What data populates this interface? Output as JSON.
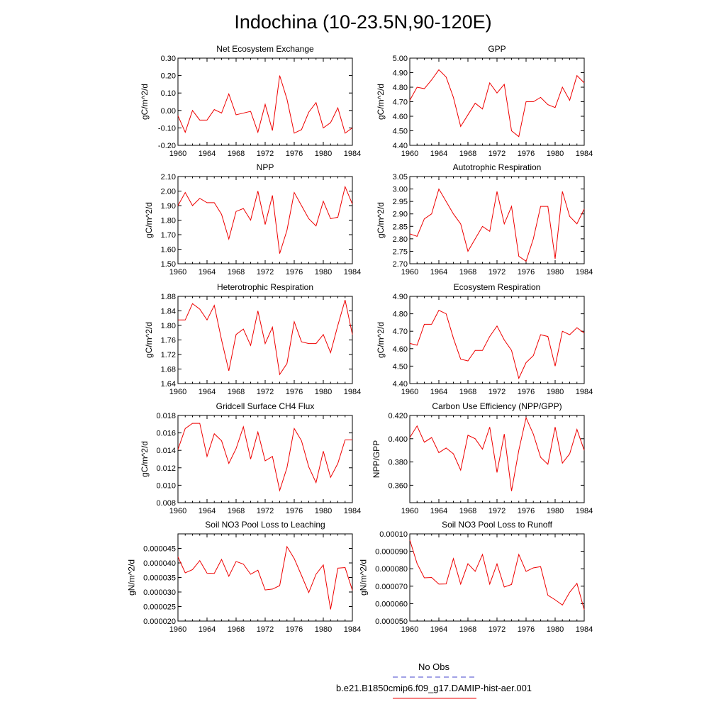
{
  "title": "Indochina (10-23.5N,90-120E)",
  "legend": {
    "items": [
      {
        "label": "No Obs",
        "color": "#4444cc",
        "style": "dashed"
      },
      {
        "label": "b.e21.B1850cmip6.f09_g17.DAMIP-hist-aer.001",
        "color": "#ee0000",
        "style": "solid"
      }
    ]
  },
  "chart_data": [
    {
      "type": "line",
      "title": "Net Ecosystem Exchange",
      "ylabel": "gC/m^2/d",
      "xlim": [
        1960,
        1984
      ],
      "ylim": [
        -0.2,
        0.3
      ],
      "xticks": [
        "1960",
        "1964",
        "1968",
        "1972",
        "1976",
        "1980",
        "1984"
      ],
      "yticks": [
        "-0.20",
        "-0.10",
        "0.00",
        "0.10",
        "0.20",
        "0.30"
      ],
      "grid": false,
      "series": [
        {
          "color": "#ee0000",
          "x": [
            1960,
            1961,
            1962,
            1963,
            1964,
            1965,
            1966,
            1967,
            1968,
            1970,
            1971,
            1972,
            1973,
            1974,
            1975,
            1976,
            1977,
            1978,
            1979,
            1980,
            1981,
            1982,
            1983,
            1984
          ],
          "values": [
            -0.03,
            -0.125,
            0.0,
            -0.055,
            -0.055,
            0.005,
            -0.015,
            0.095,
            -0.025,
            -0.005,
            -0.125,
            0.035,
            -0.115,
            0.2,
            0.065,
            -0.13,
            -0.11,
            -0.01,
            0.045,
            -0.1,
            -0.07,
            0.015,
            -0.13,
            -0.1
          ]
        }
      ]
    },
    {
      "type": "line",
      "title": "GPP",
      "ylabel": "gC/m^2/d",
      "xlim": [
        1960,
        1984
      ],
      "ylim": [
        4.4,
        5.0
      ],
      "xticks": [
        "1960",
        "1964",
        "1968",
        "1972",
        "1976",
        "1980",
        "1984"
      ],
      "yticks": [
        "4.40",
        "4.50",
        "4.60",
        "4.70",
        "4.80",
        "4.90",
        "5.00"
      ],
      "grid": false,
      "series": [
        {
          "color": "#ee0000",
          "x": [
            1960,
            1961,
            1962,
            1963,
            1964,
            1965,
            1966,
            1967,
            1968,
            1969,
            1970,
            1971,
            1972,
            1973,
            1974,
            1975,
            1976,
            1977,
            1978,
            1979,
            1980,
            1981,
            1982,
            1983,
            1984
          ],
          "values": [
            4.71,
            4.8,
            4.79,
            4.85,
            4.92,
            4.87,
            4.73,
            4.53,
            4.61,
            4.69,
            4.65,
            4.83,
            4.76,
            4.82,
            4.5,
            4.46,
            4.7,
            4.7,
            4.73,
            4.68,
            4.66,
            4.8,
            4.71,
            4.88,
            4.83
          ]
        }
      ]
    },
    {
      "type": "line",
      "title": "NPP",
      "ylabel": "gC/m^2/d",
      "xlim": [
        1960,
        1984
      ],
      "ylim": [
        1.5,
        2.1
      ],
      "xticks": [
        "1960",
        "1964",
        "1968",
        "1972",
        "1976",
        "1980",
        "1984"
      ],
      "yticks": [
        "1.50",
        "1.60",
        "1.70",
        "1.80",
        "1.90",
        "2.00",
        "2.10"
      ],
      "grid": false,
      "series": [
        {
          "color": "#ee0000",
          "x": [
            1960,
            1961,
            1962,
            1963,
            1964,
            1965,
            1966,
            1967,
            1968,
            1969,
            1970,
            1971,
            1972,
            1973,
            1974,
            1975,
            1976,
            1977,
            1978,
            1979,
            1980,
            1981,
            1982,
            1983,
            1984
          ],
          "values": [
            1.9,
            1.99,
            1.9,
            1.95,
            1.92,
            1.92,
            1.84,
            1.67,
            1.86,
            1.88,
            1.8,
            2.0,
            1.77,
            1.97,
            1.57,
            1.73,
            1.99,
            1.9,
            1.81,
            1.76,
            1.93,
            1.81,
            1.82,
            2.03,
            1.91
          ]
        }
      ]
    },
    {
      "type": "line",
      "title": "Autotrophic Respiration",
      "ylabel": "gC/m^2/d",
      "xlim": [
        1960,
        1984
      ],
      "ylim": [
        2.7,
        3.05
      ],
      "xticks": [
        "1960",
        "1964",
        "1968",
        "1972",
        "1976",
        "1980",
        "1984"
      ],
      "yticks": [
        "2.70",
        "2.75",
        "2.80",
        "2.85",
        "2.90",
        "2.95",
        "3.00",
        "3.05"
      ],
      "grid": false,
      "series": [
        {
          "color": "#ee0000",
          "x": [
            1960,
            1961,
            1962,
            1963,
            1964,
            1965,
            1966,
            1967,
            1968,
            1969,
            1970,
            1971,
            1972,
            1973,
            1974,
            1975,
            1976,
            1977,
            1978,
            1979,
            1980,
            1981,
            1982,
            1983,
            1984
          ],
          "values": [
            2.82,
            2.81,
            2.88,
            2.9,
            3.0,
            2.95,
            2.9,
            2.86,
            2.75,
            2.8,
            2.85,
            2.83,
            2.99,
            2.86,
            2.93,
            2.73,
            2.71,
            2.8,
            2.93,
            2.93,
            2.72,
            2.99,
            2.89,
            2.86,
            2.92
          ]
        }
      ]
    },
    {
      "type": "line",
      "title": "Heterotrophic Respiration",
      "ylabel": "gC/m^2/d",
      "xlim": [
        1960,
        1984
      ],
      "ylim": [
        1.64,
        1.88
      ],
      "xticks": [
        "1960",
        "1964",
        "1968",
        "1972",
        "1976",
        "1980",
        "1984"
      ],
      "yticks": [
        "1.64",
        "1.68",
        "1.72",
        "1.76",
        "1.80",
        "1.84",
        "1.88"
      ],
      "grid": false,
      "series": [
        {
          "color": "#ee0000",
          "x": [
            1960,
            1961,
            1962,
            1963,
            1964,
            1965,
            1966,
            1967,
            1968,
            1969,
            1970,
            1971,
            1972,
            1973,
            1974,
            1975,
            1976,
            1977,
            1978,
            1979,
            1980,
            1981,
            1982,
            1983,
            1984
          ],
          "values": [
            1.815,
            1.815,
            1.86,
            1.845,
            1.815,
            1.855,
            1.76,
            1.675,
            1.775,
            1.79,
            1.745,
            1.84,
            1.75,
            1.795,
            1.665,
            1.695,
            1.81,
            1.755,
            1.75,
            1.75,
            1.775,
            1.725,
            1.8,
            1.87,
            1.775
          ]
        }
      ]
    },
    {
      "type": "line",
      "title": "Ecosystem Respiration",
      "ylabel": "gC/m^2/d",
      "xlim": [
        1960,
        1984
      ],
      "ylim": [
        4.4,
        4.9
      ],
      "xticks": [
        "1960",
        "1964",
        "1968",
        "1972",
        "1976",
        "1980",
        "1984"
      ],
      "yticks": [
        "4.40",
        "4.50",
        "4.60",
        "4.70",
        "4.80",
        "4.90"
      ],
      "grid": false,
      "series": [
        {
          "color": "#ee0000",
          "x": [
            1960,
            1961,
            1962,
            1963,
            1964,
            1965,
            1966,
            1967,
            1968,
            1969,
            1970,
            1971,
            1972,
            1973,
            1974,
            1975,
            1976,
            1977,
            1978,
            1979,
            1980,
            1981,
            1982,
            1983,
            1984
          ],
          "values": [
            4.63,
            4.62,
            4.74,
            4.74,
            4.82,
            4.8,
            4.66,
            4.54,
            4.53,
            4.59,
            4.59,
            4.67,
            4.73,
            4.65,
            4.59,
            4.43,
            4.52,
            4.56,
            4.68,
            4.67,
            4.5,
            4.7,
            4.68,
            4.72,
            4.69
          ]
        }
      ]
    },
    {
      "type": "line",
      "title": "Gridcell Surface CH4 Flux",
      "ylabel": "gC/m^2/d",
      "xlim": [
        1960,
        1984
      ],
      "ylim": [
        0.008,
        0.018
      ],
      "xticks": [
        "1960",
        "1964",
        "1968",
        "1972",
        "1976",
        "1980",
        "1984"
      ],
      "yticks": [
        "0.008",
        "0.010",
        "0.012",
        "0.014",
        "0.016",
        "0.018"
      ],
      "grid": false,
      "series": [
        {
          "color": "#ee0000",
          "x": [
            1960,
            1961,
            1962,
            1963,
            1964,
            1965,
            1966,
            1967,
            1968,
            1969,
            1970,
            1971,
            1972,
            1973,
            1974,
            1975,
            1976,
            1977,
            1978,
            1979,
            1980,
            1981,
            1982,
            1983,
            1984
          ],
          "values": [
            0.0141,
            0.0165,
            0.0171,
            0.0171,
            0.0133,
            0.0159,
            0.0151,
            0.0125,
            0.0142,
            0.0167,
            0.013,
            0.0161,
            0.0128,
            0.0133,
            0.0094,
            0.012,
            0.0165,
            0.0151,
            0.0121,
            0.0103,
            0.0139,
            0.0109,
            0.0125,
            0.0152,
            0.0152
          ]
        }
      ]
    },
    {
      "type": "line",
      "title": "Carbon Use Efficiency (NPP/GPP)",
      "ylabel": "NPP/GPP",
      "xlim": [
        1960,
        1984
      ],
      "ylim": [
        0.345,
        0.42
      ],
      "xticks": [
        "1960",
        "1964",
        "1968",
        "1972",
        "1976",
        "1980",
        "1984"
      ],
      "yticks": [
        "0.360",
        "0.380",
        "0.400",
        "0.420"
      ],
      "grid": false,
      "series": [
        {
          "color": "#ee0000",
          "x": [
            1960,
            1961,
            1962,
            1963,
            1964,
            1965,
            1966,
            1967,
            1968,
            1969,
            1970,
            1971,
            1972,
            1973,
            1974,
            1975,
            1976,
            1977,
            1978,
            1979,
            1980,
            1981,
            1982,
            1983,
            1984
          ],
          "values": [
            0.401,
            0.411,
            0.397,
            0.401,
            0.388,
            0.392,
            0.387,
            0.373,
            0.403,
            0.4,
            0.391,
            0.41,
            0.371,
            0.404,
            0.355,
            0.39,
            0.418,
            0.404,
            0.384,
            0.378,
            0.41,
            0.379,
            0.387,
            0.408,
            0.39
          ]
        }
      ]
    },
    {
      "type": "line",
      "title": "Soil NO3 Pool Loss to Leaching",
      "ylabel": "gN/m^2/d",
      "xlim": [
        1960,
        1984
      ],
      "ylim": [
        2e-05,
        5e-05
      ],
      "xticks": [
        "1960",
        "1964",
        "1968",
        "1972",
        "1976",
        "1980",
        "1984"
      ],
      "yticks": [
        "0.000020",
        "0.000025",
        "0.000030",
        "0.000035",
        "0.000040",
        "0.000045"
      ],
      "grid": false,
      "series": [
        {
          "color": "#ee0000",
          "x": [
            1960,
            1961,
            1962,
            1963,
            1964,
            1965,
            1966,
            1967,
            1968,
            1969,
            1970,
            1971,
            1972,
            1973,
            1974,
            1975,
            1976,
            1977,
            1978,
            1979,
            1980,
            1981,
            1982,
            1983,
            1984
          ],
          "values": [
            4.21e-05,
            3.66e-05,
            3.77e-05,
            4.08e-05,
            3.65e-05,
            3.64e-05,
            4.12e-05,
            3.54e-05,
            4.05e-05,
            3.96e-05,
            3.61e-05,
            3.75e-05,
            3.07e-05,
            3.1e-05,
            3.22e-05,
            4.56e-05,
            4.15e-05,
            3.57e-05,
            2.98e-05,
            3.61e-05,
            3.93e-05,
            2.4e-05,
            3.82e-05,
            3.84e-05,
            3.06e-05
          ]
        }
      ]
    },
    {
      "type": "line",
      "title": "Soil NO3 Pool Loss to Runoff",
      "ylabel": "gN/m^2/d",
      "xlim": [
        1960,
        1984
      ],
      "ylim": [
        5e-05,
        0.0001
      ],
      "xticks": [
        "1960",
        "1964",
        "1968",
        "1972",
        "1976",
        "1980",
        "1984"
      ],
      "yticks": [
        "0.000050",
        "0.000060",
        "0.000070",
        "0.000080",
        "0.000090",
        "0.00010"
      ],
      "grid": false,
      "series": [
        {
          "color": "#ee0000",
          "x": [
            1960,
            1961,
            1962,
            1963,
            1964,
            1965,
            1966,
            1967,
            1968,
            1969,
            1970,
            1971,
            1972,
            1973,
            1974,
            1975,
            1976,
            1977,
            1978,
            1979,
            1980,
            1981,
            1982,
            1983,
            1984
          ],
          "values": [
            9.65e-05,
            8.3e-05,
            7.48e-05,
            7.5e-05,
            7.12e-05,
            7.13e-05,
            8.58e-05,
            7.12e-05,
            8.29e-05,
            7.85e-05,
            8.82e-05,
            7.12e-05,
            8.28e-05,
            6.95e-05,
            7.1e-05,
            8.82e-05,
            7.85e-05,
            8.05e-05,
            8.12e-05,
            6.48e-05,
            6.22e-05,
            5.92e-05,
            6.65e-05,
            7.16e-05,
            5.65e-05
          ]
        }
      ]
    }
  ]
}
